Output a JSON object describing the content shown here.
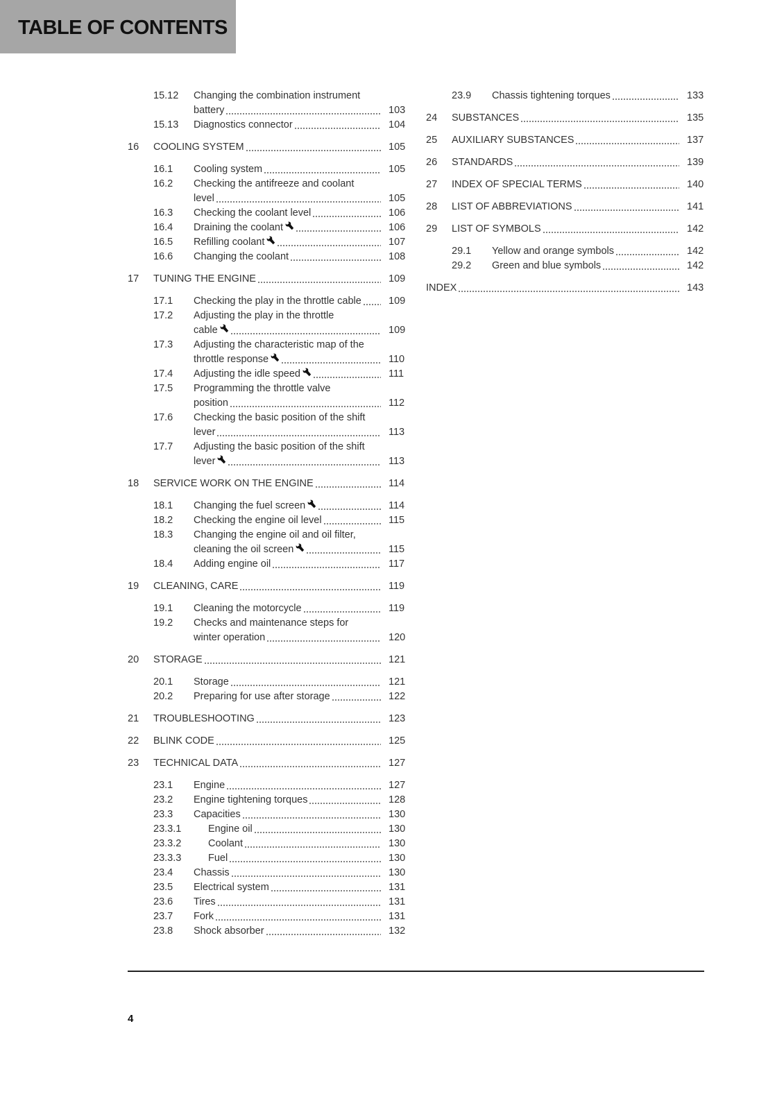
{
  "header": {
    "title": "TABLE OF CONTENTS",
    "background": "#a6a6a6"
  },
  "page_number": "4",
  "columns": [
    [
      {
        "level": "sub",
        "num": "15.12",
        "lines": [
          "Changing the combination instrument",
          "battery"
        ],
        "page": "103"
      },
      {
        "level": "sub",
        "num": "15.13",
        "lines": [
          "Diagnostics connector"
        ],
        "page": "104"
      },
      {
        "level": "chap",
        "num": "16",
        "lines": [
          "COOLING SYSTEM"
        ],
        "page": "105"
      },
      {
        "level": "sub",
        "num": "16.1",
        "lines": [
          "Cooling system"
        ],
        "page": "105"
      },
      {
        "level": "sub",
        "num": "16.2",
        "lines": [
          "Checking the antifreeze and coolant",
          "level"
        ],
        "page": "105"
      },
      {
        "level": "sub",
        "num": "16.3",
        "lines": [
          "Checking the coolant level"
        ],
        "page": "106"
      },
      {
        "level": "sub",
        "num": "16.4",
        "lines": [
          "Draining the coolant"
        ],
        "page": "106",
        "wrench": true
      },
      {
        "level": "sub",
        "num": "16.5",
        "lines": [
          "Refilling coolant"
        ],
        "page": "107",
        "wrench": true
      },
      {
        "level": "sub",
        "num": "16.6",
        "lines": [
          "Changing the coolant"
        ],
        "page": "108"
      },
      {
        "level": "chap",
        "num": "17",
        "lines": [
          "TUNING THE ENGINE"
        ],
        "page": "109"
      },
      {
        "level": "sub",
        "num": "17.1",
        "lines": [
          "Checking the play in the throttle cable"
        ],
        "page": "109"
      },
      {
        "level": "sub",
        "num": "17.2",
        "lines": [
          "Adjusting the play in the throttle",
          "cable"
        ],
        "page": "109",
        "wrench": true
      },
      {
        "level": "sub",
        "num": "17.3",
        "lines": [
          "Adjusting the characteristic map of the",
          "throttle response"
        ],
        "page": "110",
        "wrench": true
      },
      {
        "level": "sub",
        "num": "17.4",
        "lines": [
          "Adjusting the idle speed"
        ],
        "page": "111",
        "wrench": true
      },
      {
        "level": "sub",
        "num": "17.5",
        "lines": [
          "Programming the throttle valve",
          "position"
        ],
        "page": "112"
      },
      {
        "level": "sub",
        "num": "17.6",
        "lines": [
          "Checking the basic position of the shift",
          "lever"
        ],
        "page": "113"
      },
      {
        "level": "sub",
        "num": "17.7",
        "lines": [
          "Adjusting the basic position of the shift",
          "lever"
        ],
        "page": "113",
        "wrench": true
      },
      {
        "level": "chap",
        "num": "18",
        "lines": [
          "SERVICE WORK ON THE ENGINE"
        ],
        "page": "114"
      },
      {
        "level": "sub",
        "num": "18.1",
        "lines": [
          "Changing the fuel screen"
        ],
        "page": "114",
        "wrench": true
      },
      {
        "level": "sub",
        "num": "18.2",
        "lines": [
          "Checking the engine oil level"
        ],
        "page": "115"
      },
      {
        "level": "sub",
        "num": "18.3",
        "lines": [
          "Changing the engine oil and oil filter,",
          "cleaning the oil screen"
        ],
        "page": "115",
        "wrench": true
      },
      {
        "level": "sub",
        "num": "18.4",
        "lines": [
          "Adding engine oil"
        ],
        "page": "117"
      },
      {
        "level": "chap",
        "num": "19",
        "lines": [
          "CLEANING, CARE"
        ],
        "page": "119"
      },
      {
        "level": "sub",
        "num": "19.1",
        "lines": [
          "Cleaning the motorcycle"
        ],
        "page": "119"
      },
      {
        "level": "sub",
        "num": "19.2",
        "lines": [
          "Checks and maintenance steps for",
          "winter operation"
        ],
        "page": "120"
      },
      {
        "level": "chap",
        "num": "20",
        "lines": [
          "STORAGE"
        ],
        "page": "121"
      },
      {
        "level": "sub",
        "num": "20.1",
        "lines": [
          "Storage"
        ],
        "page": "121"
      },
      {
        "level": "sub",
        "num": "20.2",
        "lines": [
          "Preparing for use after storage"
        ],
        "page": "122"
      },
      {
        "level": "chap",
        "num": "21",
        "lines": [
          "TROUBLESHOOTING"
        ],
        "page": "123"
      },
      {
        "level": "chap",
        "num": "22",
        "lines": [
          "BLINK CODE"
        ],
        "page": "125"
      },
      {
        "level": "chap",
        "num": "23",
        "lines": [
          "TECHNICAL DATA"
        ],
        "page": "127"
      },
      {
        "level": "sub",
        "num": "23.1",
        "lines": [
          "Engine"
        ],
        "page": "127"
      },
      {
        "level": "sub",
        "num": "23.2",
        "lines": [
          "Engine tightening torques"
        ],
        "page": "128"
      },
      {
        "level": "sub",
        "num": "23.3",
        "lines": [
          "Capacities"
        ],
        "page": "130"
      },
      {
        "level": "subsub",
        "num": "23.3.1",
        "lines": [
          "Engine oil"
        ],
        "page": "130"
      },
      {
        "level": "subsub",
        "num": "23.3.2",
        "lines": [
          "Coolant"
        ],
        "page": "130"
      },
      {
        "level": "subsub",
        "num": "23.3.3",
        "lines": [
          "Fuel"
        ],
        "page": "130"
      },
      {
        "level": "sub",
        "num": "23.4",
        "lines": [
          "Chassis"
        ],
        "page": "130"
      },
      {
        "level": "sub",
        "num": "23.5",
        "lines": [
          "Electrical system"
        ],
        "page": "131"
      },
      {
        "level": "sub",
        "num": "23.6",
        "lines": [
          "Tires"
        ],
        "page": "131"
      },
      {
        "level": "sub",
        "num": "23.7",
        "lines": [
          "Fork"
        ],
        "page": "131"
      },
      {
        "level": "sub",
        "num": "23.8",
        "lines": [
          "Shock absorber"
        ],
        "page": "132"
      }
    ],
    [
      {
        "level": "sub",
        "num": "23.9",
        "lines": [
          "Chassis tightening torques"
        ],
        "page": "133"
      },
      {
        "level": "chap",
        "num": "24",
        "lines": [
          "SUBSTANCES"
        ],
        "page": "135"
      },
      {
        "level": "chap",
        "num": "25",
        "lines": [
          "AUXILIARY SUBSTANCES"
        ],
        "page": "137"
      },
      {
        "level": "chap",
        "num": "26",
        "lines": [
          "STANDARDS"
        ],
        "page": "139"
      },
      {
        "level": "chap",
        "num": "27",
        "lines": [
          "INDEX OF SPECIAL TERMS"
        ],
        "page": "140"
      },
      {
        "level": "chap",
        "num": "28",
        "lines": [
          "LIST OF ABBREVIATIONS"
        ],
        "page": "141"
      },
      {
        "level": "chap",
        "num": "29",
        "lines": [
          "LIST OF SYMBOLS"
        ],
        "page": "142"
      },
      {
        "level": "sub",
        "num": "29.1",
        "lines": [
          "Yellow and orange symbols"
        ],
        "page": "142"
      },
      {
        "level": "sub",
        "num": "29.2",
        "lines": [
          "Green and blue symbols"
        ],
        "page": "142"
      },
      {
        "level": "index",
        "num": "",
        "lines": [
          "INDEX"
        ],
        "page": "143"
      }
    ]
  ]
}
